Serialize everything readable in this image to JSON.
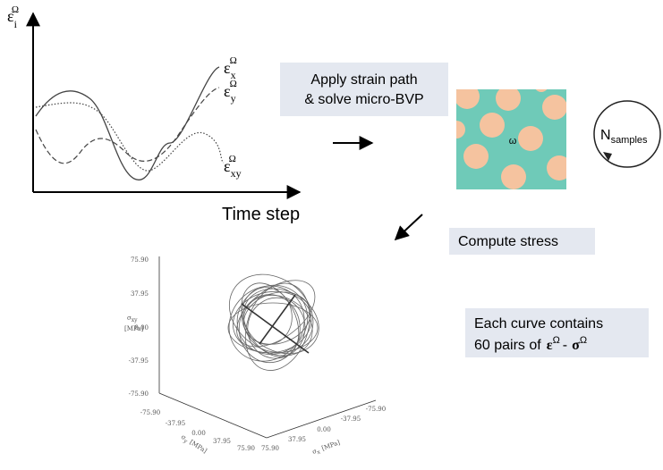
{
  "strain_plot": {
    "y_label": {
      "base": "ε",
      "sub": "i",
      "sup": "Ω"
    },
    "x_label": "Time step",
    "curves": [
      {
        "base": "ε",
        "sub": "x",
        "sup": "Ω"
      },
      {
        "base": "ε",
        "sub": "y",
        "sup": "Ω"
      },
      {
        "base": "ε",
        "sub": "xy",
        "sup": "Ω"
      }
    ]
  },
  "steps": {
    "apply": [
      "Apply strain path",
      "& solve micro-BVP"
    ],
    "rve_label": "ω",
    "samples": {
      "base": "N",
      "sub": "samples"
    },
    "compute": "Compute stress"
  },
  "note": {
    "line1": "Each curve contains",
    "line2": "60 pairs of",
    "eps": {
      "base": "ε",
      "sup": "Ω"
    },
    "dash": "-",
    "sig": {
      "base": "σ",
      "sup": "Ω"
    }
  },
  "stress_plot": {
    "z_label": {
      "base": "σ",
      "sub": "xy",
      "unit": "[MPa]"
    },
    "z_ticks": [
      "75.90",
      "37.95",
      "0.00",
      "-37.95",
      "-75.90"
    ],
    "left_ticks": [
      "-75.90",
      "-37.95",
      "0.00",
      "37.95",
      "75.90"
    ],
    "left_label": {
      "base": "σ",
      "sub": "y",
      "unit": "[MPa]"
    },
    "right_ticks": [
      "75.90",
      "37.95",
      "0.00",
      "-37.95",
      "-75.90"
    ],
    "right_label": {
      "base": "σ",
      "sub": "x",
      "unit": "[MPa]"
    }
  }
}
